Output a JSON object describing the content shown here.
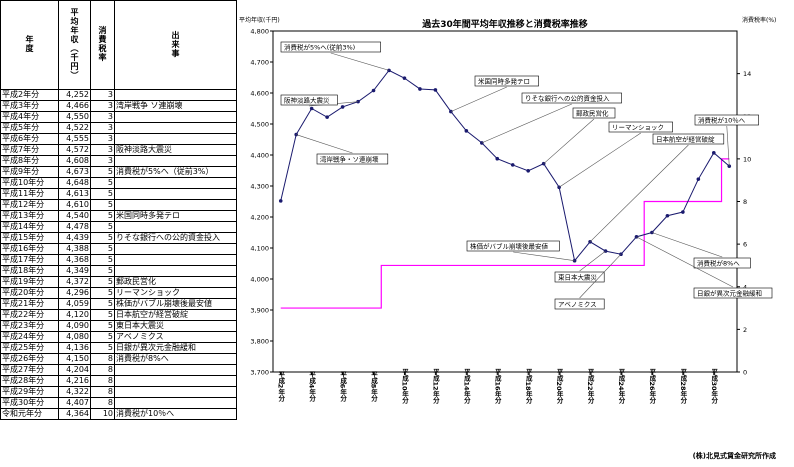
{
  "table": {
    "headers": {
      "year": "年度",
      "salary": "平均年収（千円）",
      "tax": "消費税率",
      "event": "出来事"
    },
    "rows": [
      {
        "year": "平成2年分",
        "salary": "4,252",
        "tax": "3",
        "event": ""
      },
      {
        "year": "平成3年分",
        "salary": "4,466",
        "tax": "3",
        "event": "湾岸戦争 ソ連崩壊"
      },
      {
        "year": "平成4年分",
        "salary": "4,550",
        "tax": "3",
        "event": ""
      },
      {
        "year": "平成5年分",
        "salary": "4,522",
        "tax": "3",
        "event": ""
      },
      {
        "year": "平成6年分",
        "salary": "4,555",
        "tax": "3",
        "event": ""
      },
      {
        "year": "平成7年分",
        "salary": "4,572",
        "tax": "3",
        "event": "阪神淡路大震災"
      },
      {
        "year": "平成8年分",
        "salary": "4,608",
        "tax": "3",
        "event": ""
      },
      {
        "year": "平成9年分",
        "salary": "4,673",
        "tax": "5",
        "event": "消費税が5%へ（従前3%）"
      },
      {
        "year": "平成10年分",
        "salary": "4,648",
        "tax": "5",
        "event": ""
      },
      {
        "year": "平成11年分",
        "salary": "4,613",
        "tax": "5",
        "event": ""
      },
      {
        "year": "平成12年分",
        "salary": "4,610",
        "tax": "5",
        "event": ""
      },
      {
        "year": "平成13年分",
        "salary": "4,540",
        "tax": "5",
        "event": "米国同時多発テロ"
      },
      {
        "year": "平成14年分",
        "salary": "4,478",
        "tax": "5",
        "event": ""
      },
      {
        "year": "平成15年分",
        "salary": "4,439",
        "tax": "5",
        "event": "りそな銀行への公的資金投入"
      },
      {
        "year": "平成16年分",
        "salary": "4,388",
        "tax": "5",
        "event": ""
      },
      {
        "year": "平成17年分",
        "salary": "4,368",
        "tax": "5",
        "event": ""
      },
      {
        "year": "平成18年分",
        "salary": "4,349",
        "tax": "5",
        "event": ""
      },
      {
        "year": "平成19年分",
        "salary": "4,372",
        "tax": "5",
        "event": "郵政民営化"
      },
      {
        "year": "平成20年分",
        "salary": "4,296",
        "tax": "5",
        "event": "リーマンショック"
      },
      {
        "year": "平成21年分",
        "salary": "4,059",
        "tax": "5",
        "event": "株価がバブル崩壊後最安値"
      },
      {
        "year": "平成22年分",
        "salary": "4,120",
        "tax": "5",
        "event": "日本航空が経営破綻"
      },
      {
        "year": "平成23年分",
        "salary": "4,090",
        "tax": "5",
        "event": "東日本大震災"
      },
      {
        "year": "平成24年分",
        "salary": "4,080",
        "tax": "5",
        "event": "アベノミクス"
      },
      {
        "year": "平成25年分",
        "salary": "4,136",
        "tax": "5",
        "event": "日銀が異次元金融緩和"
      },
      {
        "year": "平成26年分",
        "salary": "4,150",
        "tax": "8",
        "event": "消費税が8%へ"
      },
      {
        "year": "平成27年分",
        "salary": "4,204",
        "tax": "8",
        "event": ""
      },
      {
        "year": "平成28年分",
        "salary": "4,216",
        "tax": "8",
        "event": ""
      },
      {
        "year": "平成29年分",
        "salary": "4,322",
        "tax": "8",
        "event": ""
      },
      {
        "year": "平成30年分",
        "salary": "4,407",
        "tax": "8",
        "event": ""
      },
      {
        "year": "令和元年分",
        "salary": "4,364",
        "tax": "10",
        "event": "消費税が10％へ"
      }
    ]
  },
  "chart_data": {
    "type": "line",
    "title": "過去30年間平均年収推移と消費税率推移",
    "ylabel_left": "平均年収(千円)",
    "ylabel_right": "消費税率(%)",
    "ylim_left": [
      3700,
      4800
    ],
    "ylim_right": [
      0,
      16
    ],
    "yticks_left": [
      "3,700",
      "3,800",
      "3,900",
      "4,000",
      "4,100",
      "4,200",
      "4,300",
      "4,400",
      "4,500",
      "4,600",
      "4,700",
      "4,800"
    ],
    "yticks_right": [
      "0",
      "2",
      "4",
      "6",
      "8",
      "10",
      "12",
      "14"
    ],
    "xtick_labels": [
      "平成2年分",
      "平成4年分",
      "平成6年分",
      "平成8年分",
      "平成10年分",
      "平成12年分",
      "平成14年分",
      "平成16年分",
      "平成18年分",
      "平成20年分",
      "平成22年分",
      "平成24年分",
      "平成26年分",
      "平成28年分",
      "平成30年分"
    ],
    "grid": false,
    "series": [
      {
        "axis": "left",
        "color": "#1a1a6e",
        "values": [
          4252,
          4466,
          4550,
          4522,
          4555,
          4572,
          4608,
          4673,
          4648,
          4613,
          4610,
          4540,
          4478,
          4439,
          4388,
          4368,
          4349,
          4372,
          4296,
          4059,
          4120,
          4090,
          4080,
          4136,
          4150,
          4204,
          4216,
          4322,
          4407,
          4364
        ]
      },
      {
        "axis": "right",
        "color": "#ff00ff",
        "values": [
          3,
          3,
          3,
          3,
          3,
          3,
          3,
          5,
          5,
          5,
          5,
          5,
          5,
          5,
          5,
          5,
          5,
          5,
          5,
          5,
          5,
          5,
          5,
          5,
          8,
          8,
          8,
          8,
          8,
          10
        ]
      }
    ],
    "annotations": [
      {
        "text": "消費税が5%へ(従前3%)",
        "idx": 7
      },
      {
        "text": "阪神淡路大震災",
        "idx": 5
      },
      {
        "text": "湾岸戦争・ソ連崩壊",
        "idx": 1
      },
      {
        "text": "米国同時多発テロ",
        "idx": 11
      },
      {
        "text": "りそな銀行への公的資金投入",
        "idx": 13
      },
      {
        "text": "郵政民営化",
        "idx": 17
      },
      {
        "text": "リーマンショック",
        "idx": 18
      },
      {
        "text": "日本航空が経営破綻",
        "idx": 20
      },
      {
        "text": "消費税が10％へ",
        "idx": 29
      },
      {
        "text": "株価がバブル崩壊後最安値",
        "idx": 19
      },
      {
        "text": "東日本大震災",
        "idx": 21
      },
      {
        "text": "アベノミクス",
        "idx": 22
      },
      {
        "text": "消費税が8%へ",
        "idx": 24
      },
      {
        "text": "日銀が異次元金融緩和",
        "idx": 23
      }
    ]
  },
  "credit": "(株)北見式賃金研究所作成"
}
